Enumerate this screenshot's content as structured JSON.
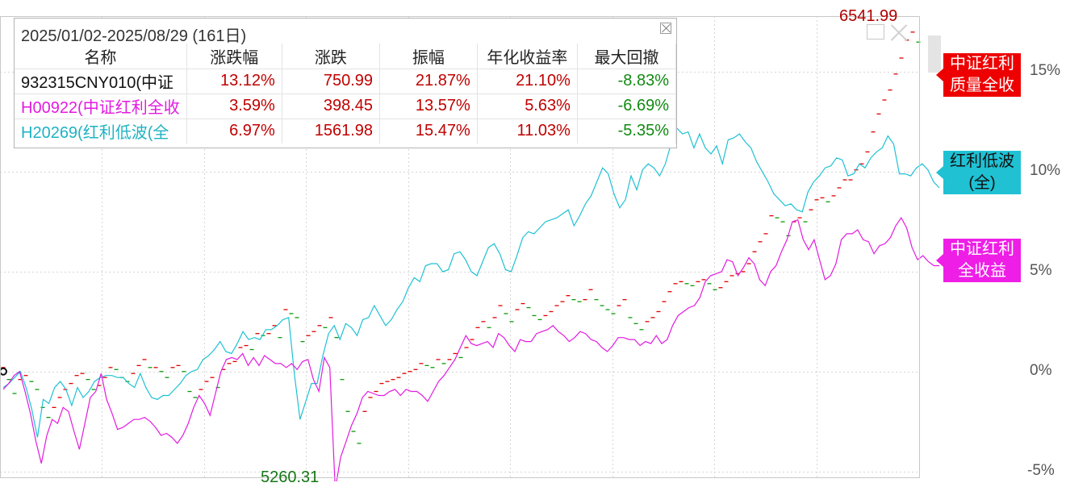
{
  "chart_data": {
    "type": "line",
    "title": "",
    "x_start": "2025/01/02",
    "x_end": "2025/08/29",
    "ylim": [
      -5.3,
      17.8
    ],
    "y_ticks": [
      -5,
      0,
      5,
      10,
      15
    ],
    "y_tick_labels": [
      "-5%",
      "0%",
      "5%",
      "10%",
      "15%"
    ],
    "grid": true,
    "high_label": "6541.99",
    "low_label": "5260.31",
    "series": [
      {
        "name": "中证红利质量全收",
        "color": "#e00000",
        "values": [
          0.2,
          -0.4,
          -1.1,
          -0.4,
          -0.2,
          -0.5,
          -0.9,
          -1.8,
          -2.3,
          -1.8,
          -1.3,
          -0.9,
          -0.6,
          -0.2,
          -0.1,
          -0.4,
          -0.9,
          -0.7,
          -0.3,
          0.2,
          0.1,
          -0.3,
          -0.5,
          -0.1,
          0.3,
          0.6,
          0.2,
          0.2,
          0.0,
          -0.3,
          0.2,
          0.3,
          0.0,
          -1.0,
          -1.3,
          -0.9,
          -0.5,
          -0.3,
          -0.8,
          0.1,
          0.4,
          0.5,
          1.2,
          1.3,
          1.1,
          1.9,
          1.8,
          1.9,
          2.3,
          1.7,
          3.1,
          2.9,
          2.7,
          1.5,
          1.8,
          2.0,
          2.3,
          2.2,
          2.7,
          1.7,
          -0.4,
          -2.0,
          -3.0,
          -3.6,
          -2.0,
          -1.3,
          -1.0,
          -0.6,
          -0.5,
          -0.4,
          -0.3,
          -0.1,
          0.0,
          0.1,
          0.4,
          0.3,
          0.2,
          0.6,
          0.4,
          0.6,
          0.9,
          0.7,
          1.2,
          1.6,
          2.2,
          2.5,
          2.2,
          2.7,
          3.3,
          2.9,
          2.5,
          3.1,
          3.4,
          3.2,
          2.8,
          2.6,
          2.8,
          3.0,
          3.3,
          3.5,
          3.8,
          3.6,
          3.5,
          3.6,
          4.1,
          3.6,
          3.3,
          3.1,
          2.9,
          3.3,
          3.6,
          2.7,
          2.4,
          2.1,
          2.5,
          2.7,
          3.0,
          3.5,
          4.0,
          4.4,
          4.5,
          4.4,
          4.3,
          4.5,
          4.6,
          4.4,
          4.1,
          4.2,
          4.5,
          4.8,
          4.9,
          5.0,
          5.4,
          6.0,
          6.5,
          6.9,
          7.8,
          7.7,
          7.5,
          6.8,
          7.5,
          7.7,
          7.5,
          8.1,
          8.6,
          8.7,
          8.5,
          8.8,
          9.2,
          9.6,
          9.6,
          10.1,
          10.4,
          11.0,
          12.0,
          12.9,
          13.6,
          14.1,
          14.9,
          15.7,
          16.6,
          17.0,
          16.5
        ]
      },
      {
        "name": "红利低波(全)",
        "color": "#1fc1d3",
        "values": [
          -0.8,
          -0.6,
          -0.3,
          0.0,
          -0.8,
          -1.9,
          -3.3,
          -1.4,
          -1.6,
          -0.8,
          -0.5,
          -0.9,
          -1.7,
          -0.8,
          -1.3,
          -1.0,
          -0.5,
          -0.3,
          -0.2,
          -0.2,
          -0.3,
          -0.3,
          -0.6,
          -0.8,
          -0.1,
          -0.8,
          -1.3,
          -1.4,
          -1.2,
          -1.2,
          -0.9,
          -0.6,
          -0.2,
          0.0,
          0.1,
          0.6,
          0.8,
          1.1,
          1.5,
          1.0,
          0.9,
          1.4,
          2.0,
          1.6,
          1.7,
          1.6,
          2.1,
          2.1,
          2.3,
          2.6,
          2.7,
          -0.1,
          -2.4,
          -1.5,
          -0.6,
          -0.6,
          0.8,
          1.9,
          2.3,
          1.6,
          2.4,
          2.2,
          1.8,
          2.6,
          2.7,
          3.3,
          2.8,
          2.3,
          2.6,
          3.1,
          3.5,
          4.2,
          4.7,
          4.5,
          5.3,
          5.4,
          5.4,
          5.0,
          5.1,
          5.9,
          6.0,
          5.6,
          5.0,
          4.8,
          5.5,
          6.2,
          6.4,
          5.9,
          5.1,
          5.0,
          5.8,
          6.7,
          7.0,
          6.9,
          7.2,
          7.5,
          7.6,
          7.7,
          7.9,
          8.1,
          7.3,
          7.8,
          8.4,
          8.8,
          9.5,
          10.2,
          9.9,
          8.9,
          8.2,
          8.6,
          9.8,
          9.1,
          10.1,
          10.4,
          10.2,
          9.8,
          10.4,
          11.4,
          12.2,
          11.9,
          12.0,
          11.2,
          11.9,
          11.2,
          10.9,
          11.3,
          10.4,
          11.6,
          11.7,
          11.9,
          11.5,
          11.2,
          10.5,
          10.0,
          9.5,
          8.9,
          8.6,
          8.3,
          8.4,
          8.1,
          8.0,
          9.0,
          9.5,
          9.8,
          10.2,
          10.3,
          10.7,
          10.6,
          9.8,
          9.9,
          10.4,
          10.2,
          10.7,
          11.0,
          11.2,
          11.8,
          11.4,
          9.9,
          9.9,
          9.8,
          10.2,
          10.4,
          10.1,
          9.5,
          9.2
        ]
      },
      {
        "name": "中证红利全收益",
        "color": "#e21be0",
        "values": [
          -0.9,
          -0.6,
          -0.2,
          0.0,
          -1.0,
          -2.1,
          -3.5,
          -4.6,
          -3.2,
          -2.4,
          -2.6,
          -1.8,
          -2.0,
          -3.0,
          -3.9,
          -2.6,
          -1.3,
          -1.0,
          -0.1,
          -1.4,
          -2.1,
          -2.9,
          -2.8,
          -2.6,
          -2.4,
          -2.4,
          -2.3,
          -2.5,
          -2.8,
          -3.2,
          -3.1,
          -3.3,
          -3.6,
          -3.2,
          -2.6,
          -1.8,
          -1.2,
          -1.6,
          -2.2,
          -1.1,
          0.0,
          0.6,
          0.7,
          0.6,
          0.9,
          0.3,
          0.7,
          0.3,
          0.8,
          0.6,
          0.4,
          0.4,
          0.2,
          0.4,
          0.1,
          0.5,
          0.6,
          -0.4,
          -1.0,
          0.7,
          0.2,
          -5.9,
          -4.3,
          -3.5,
          -2.7,
          -2.1,
          -1.3,
          -1.0,
          -1.1,
          -1.2,
          -1.2,
          -1.0,
          -0.9,
          -1.2,
          -0.9,
          -1.0,
          -1.0,
          -1.2,
          -1.5,
          -1.0,
          -0.5,
          -0.2,
          0.2,
          0.6,
          1.2,
          1.8,
          1.4,
          1.3,
          1.4,
          1.5,
          1.2,
          1.9,
          1.7,
          1.3,
          1.0,
          1.6,
          1.5,
          1.5,
          1.9,
          2.0,
          2.1,
          2.3,
          2.0,
          1.8,
          1.5,
          1.7,
          2.0,
          1.9,
          1.6,
          1.5,
          1.2,
          1.0,
          1.3,
          1.7,
          1.7,
          1.6,
          1.6,
          1.3,
          1.5,
          1.4,
          1.8,
          1.4,
          1.6,
          2.3,
          2.8,
          3.0,
          3.2,
          3.3,
          3.7,
          4.5,
          4.8,
          4.9,
          5.0,
          5.6,
          5.5,
          4.8,
          5.2,
          5.7,
          5.4,
          4.6,
          4.3,
          5.0,
          5.3,
          6.0,
          6.6,
          7.5,
          7.6,
          6.6,
          6.1,
          6.6,
          5.6,
          4.6,
          4.8,
          5.4,
          6.6,
          6.9,
          6.9,
          7.1,
          6.6,
          6.5,
          5.9,
          6.3,
          6.4,
          6.7,
          7.3,
          7.7,
          7.2,
          6.2,
          5.6,
          5.8,
          5.5,
          5.3,
          5.3
        ]
      }
    ]
  },
  "info_panel": {
    "title": "2025/01/02-2025/08/29 (161日)",
    "headers": [
      "名称",
      "涨跌幅",
      "涨跌",
      "振幅",
      "年化收益率",
      "最大回撤"
    ],
    "rows": [
      {
        "name": "932315CNY010(中证",
        "name_color": "#111111",
        "pct": "13.12%",
        "chg": "750.99",
        "amp": "21.87%",
        "ann": "21.10%",
        "dd": "-8.83%"
      },
      {
        "name": "H00922(中证红利全收",
        "name_color": "#e21be0",
        "pct": "3.59%",
        "chg": "398.45",
        "amp": "13.57%",
        "ann": "5.63%",
        "dd": "-6.69%"
      },
      {
        "name": "H20269(红利低波(全",
        "name_color": "#1fb3c4",
        "pct": "6.97%",
        "chg": "1561.98",
        "amp": "15.47%",
        "ann": "11.03%",
        "dd": "-5.35%"
      }
    ]
  },
  "legend_tags": [
    {
      "line1": "中证红利",
      "line2": "质量全收"
    },
    {
      "line1": "红利低波",
      "line2": "(全)"
    },
    {
      "line1": "中证红利",
      "line2": "全收益"
    }
  ]
}
